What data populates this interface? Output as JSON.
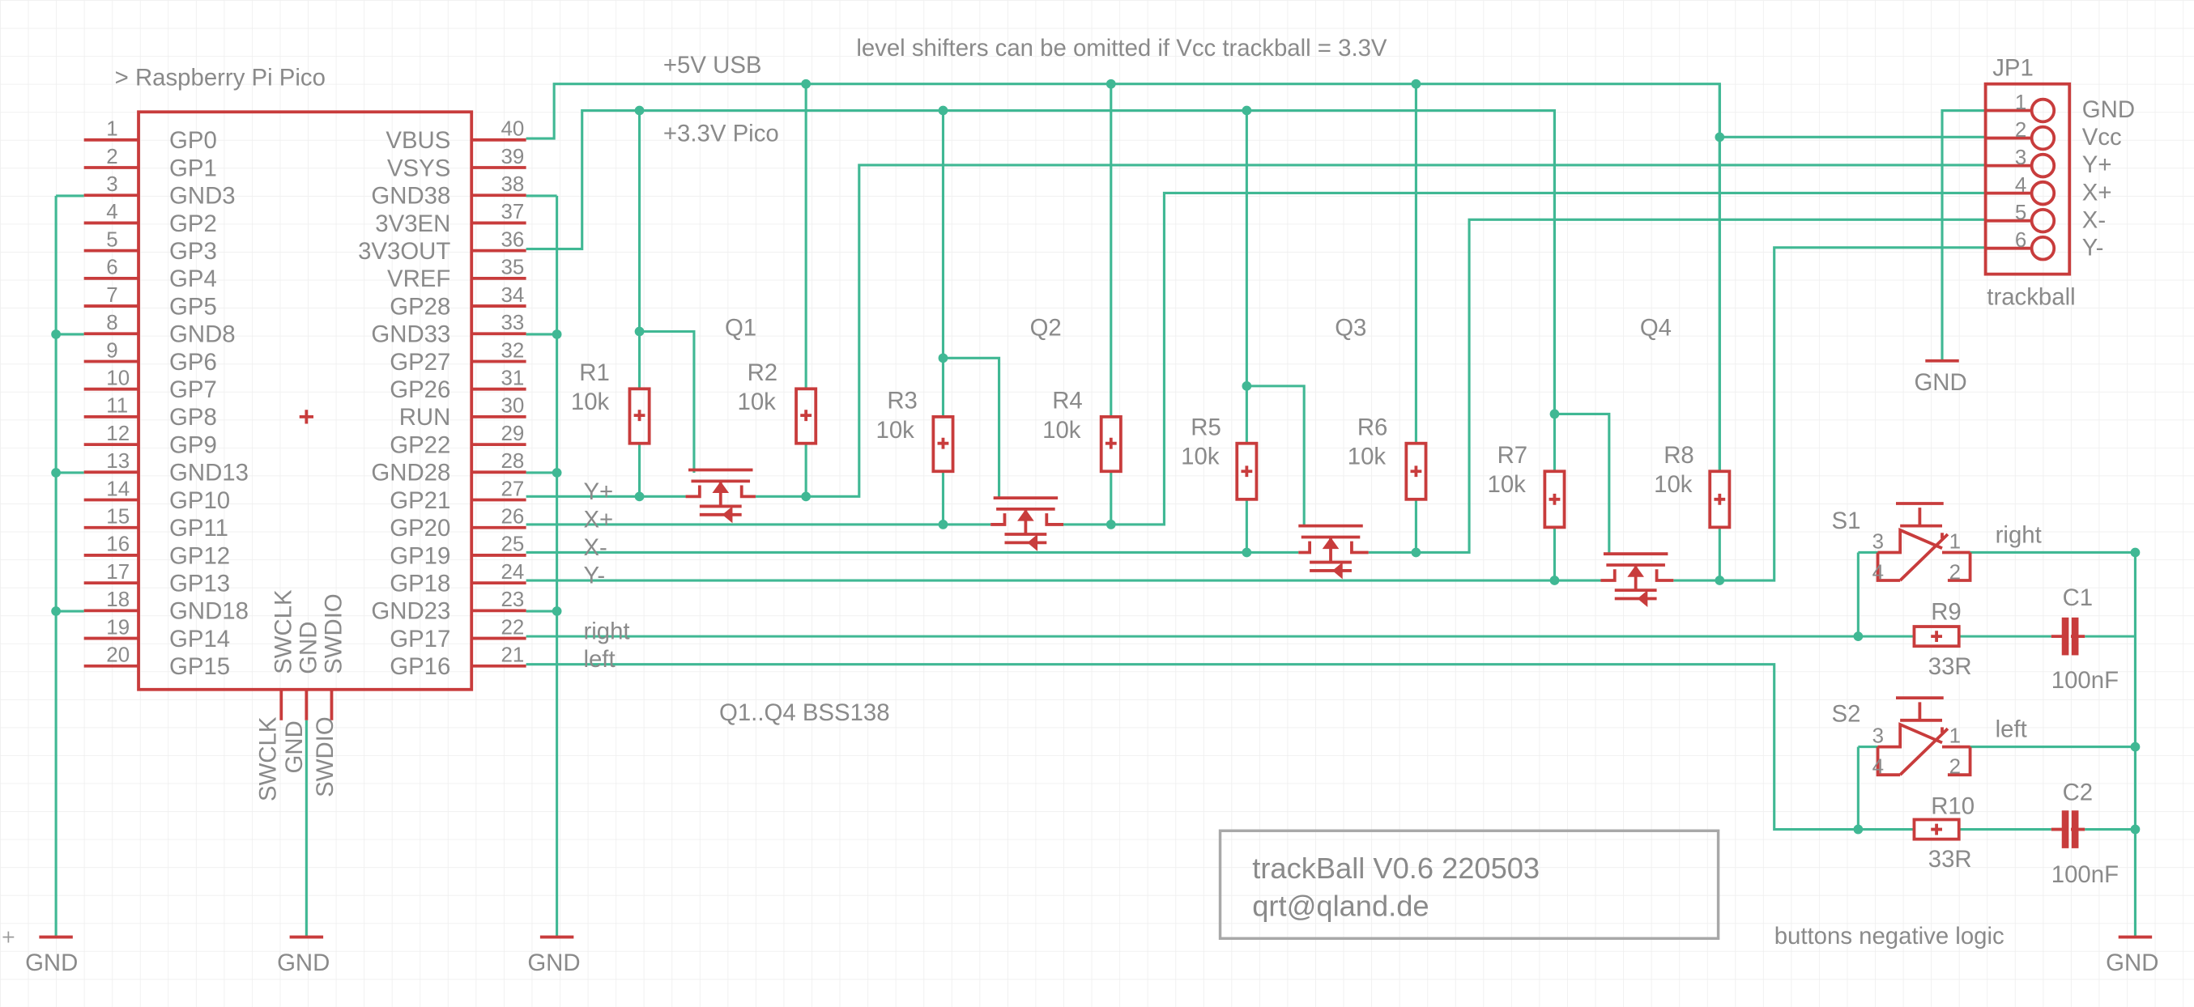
{
  "pico": {
    "label": "> Raspberry Pi Pico",
    "left_pins": [
      {
        "num": "1",
        "name": "GP0"
      },
      {
        "num": "2",
        "name": "GP1"
      },
      {
        "num": "3",
        "name": "GND3"
      },
      {
        "num": "4",
        "name": "GP2"
      },
      {
        "num": "5",
        "name": "GP3"
      },
      {
        "num": "6",
        "name": "GP4"
      },
      {
        "num": "7",
        "name": "GP5"
      },
      {
        "num": "8",
        "name": "GND8"
      },
      {
        "num": "9",
        "name": "GP6"
      },
      {
        "num": "10",
        "name": "GP7"
      },
      {
        "num": "11",
        "name": "GP8"
      },
      {
        "num": "12",
        "name": "GP9"
      },
      {
        "num": "13",
        "name": "GND13"
      },
      {
        "num": "14",
        "name": "GP10"
      },
      {
        "num": "15",
        "name": "GP11"
      },
      {
        "num": "16",
        "name": "GP12"
      },
      {
        "num": "17",
        "name": "GP13"
      },
      {
        "num": "18",
        "name": "GND18"
      },
      {
        "num": "19",
        "name": "GP14"
      },
      {
        "num": "20",
        "name": "GP15"
      }
    ],
    "right_pins": [
      {
        "num": "40",
        "name": "VBUS"
      },
      {
        "num": "39",
        "name": "VSYS"
      },
      {
        "num": "38",
        "name": "GND38"
      },
      {
        "num": "37",
        "name": "3V3EN"
      },
      {
        "num": "36",
        "name": "3V3OUT"
      },
      {
        "num": "35",
        "name": "VREF"
      },
      {
        "num": "34",
        "name": "GP28"
      },
      {
        "num": "33",
        "name": "GND33"
      },
      {
        "num": "32",
        "name": "GP27"
      },
      {
        "num": "31",
        "name": "GP26"
      },
      {
        "num": "30",
        "name": "RUN"
      },
      {
        "num": "29",
        "name": "GP22"
      },
      {
        "num": "28",
        "name": "GND28"
      },
      {
        "num": "27",
        "name": "GP21"
      },
      {
        "num": "26",
        "name": "GP20"
      },
      {
        "num": "25",
        "name": "GP19"
      },
      {
        "num": "24",
        "name": "GP18"
      },
      {
        "num": "23",
        "name": "GND23"
      },
      {
        "num": "22",
        "name": "GP17"
      },
      {
        "num": "21",
        "name": "GP16"
      }
    ],
    "bottom_pins": [
      "SWCLK",
      "GND",
      "SWDIO"
    ]
  },
  "nets": {
    "v5": "+5V USB",
    "v33": "+3.3V Pico",
    "note": "level shifters can be omitted if Vcc trackball = 3.3V",
    "right": "right",
    "left": "left",
    "yp": "Y+",
    "xp": "X+",
    "xm": "X-",
    "ym": "Y-"
  },
  "transistors": [
    {
      "name": "Q1"
    },
    {
      "name": "Q2"
    },
    {
      "name": "Q3"
    },
    {
      "name": "Q4"
    }
  ],
  "transistor_note": "Q1..Q4 BSS138",
  "resistors": [
    {
      "name": "R1",
      "value": "10k"
    },
    {
      "name": "R2",
      "value": "10k"
    },
    {
      "name": "R3",
      "value": "10k"
    },
    {
      "name": "R4",
      "value": "10k"
    },
    {
      "name": "R5",
      "value": "10k"
    },
    {
      "name": "R6",
      "value": "10k"
    },
    {
      "name": "R7",
      "value": "10k"
    },
    {
      "name": "R8",
      "value": "10k"
    }
  ],
  "connector": {
    "name": "JP1",
    "label": "trackball",
    "pins": [
      {
        "num": "1",
        "signal": "GND"
      },
      {
        "num": "2",
        "signal": "Vcc"
      },
      {
        "num": "3",
        "signal": "Y+"
      },
      {
        "num": "4",
        "signal": "X+"
      },
      {
        "num": "5",
        "signal": "X-"
      },
      {
        "num": "6",
        "signal": "Y-"
      }
    ]
  },
  "buttons": [
    {
      "switch": "S1",
      "resistor": "R9",
      "r_value": "33R",
      "cap": "C1",
      "c_value": "100nF",
      "net": "right"
    },
    {
      "switch": "S2",
      "resistor": "R10",
      "r_value": "33R",
      "cap": "C2",
      "c_value": "100nF",
      "net": "left"
    }
  ],
  "switch_pins": [
    "3",
    "1",
    "4",
    "2"
  ],
  "gnd_label": "GND",
  "title_block": {
    "line1": "trackBall V0.6 220503",
    "line2": "qrt@qland.de"
  },
  "buttons_note": "buttons negative logic",
  "colors": {
    "net": "#40b894",
    "symbol": "#c83c3c",
    "text": "#8a8a8a",
    "grid": "#efefef"
  }
}
